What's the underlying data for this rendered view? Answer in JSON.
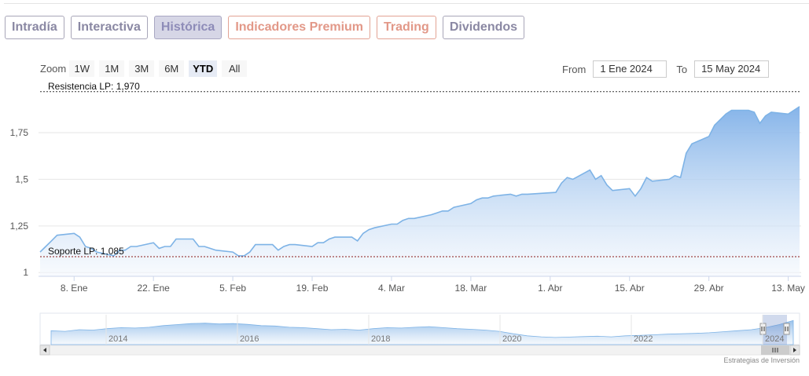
{
  "tabs": [
    {
      "label": "Intradía",
      "style": "normal"
    },
    {
      "label": "Interactiva",
      "style": "normal"
    },
    {
      "label": "Histórica",
      "style": "active"
    },
    {
      "label": "Indicadores Premium",
      "style": "premium"
    },
    {
      "label": "Trading",
      "style": "premium"
    },
    {
      "label": "Dividendos",
      "style": "normal"
    }
  ],
  "zoom": {
    "label": "Zoom",
    "buttons": [
      "1W",
      "1M",
      "3M",
      "6M",
      "YTD",
      "All"
    ],
    "selected": "YTD"
  },
  "range": {
    "from_label": "From",
    "from_value": "1 Ene 2024",
    "to_label": "To",
    "to_value": "15 May 2024"
  },
  "credits": "Estrategias de Inversión",
  "colors": {
    "line": "#7eb3e6",
    "area_top": "#7fb0e8",
    "area_bottom": "#f4f8fd",
    "resistance": "#333333",
    "support": "#8b1a1a",
    "active_tab_bg": "#d6d6e6",
    "premium_tab": "#e29888"
  },
  "chart_data": {
    "type": "area",
    "x_ticks": [
      "8. Ene",
      "22. Ene",
      "5. Feb",
      "19. Feb",
      "4. Mar",
      "18. Mar",
      "1. Abr",
      "15. Abr",
      "29. Abr",
      "13. May"
    ],
    "y_ticks": [
      "1",
      "1,25",
      "1,5",
      "1,75"
    ],
    "ylim": [
      0.98,
      1.99
    ],
    "xlim": [
      "2024-01-02",
      "2024-05-15"
    ],
    "plot_lines": [
      {
        "label": "Resistencia LP: 1,970",
        "value": 1.97,
        "style": "dashed"
      },
      {
        "label": "Soporte LP: 1,085",
        "value": 1.085,
        "style": "dashed"
      }
    ],
    "series": [
      {
        "x": [
          "2024-01-02",
          "2024-01-03",
          "2024-01-04",
          "2024-01-05",
          "2024-01-08",
          "2024-01-09",
          "2024-01-10",
          "2024-01-11",
          "2024-01-12",
          "2024-01-15",
          "2024-01-16",
          "2024-01-17",
          "2024-01-18",
          "2024-01-19",
          "2024-01-22",
          "2024-01-23",
          "2024-01-24",
          "2024-01-25",
          "2024-01-26",
          "2024-01-29",
          "2024-01-30",
          "2024-01-31",
          "2024-02-01",
          "2024-02-02",
          "2024-02-05",
          "2024-02-06",
          "2024-02-07",
          "2024-02-08",
          "2024-02-09",
          "2024-02-12",
          "2024-02-13",
          "2024-02-14",
          "2024-02-15",
          "2024-02-16",
          "2024-02-19",
          "2024-02-20",
          "2024-02-21",
          "2024-02-22",
          "2024-02-23",
          "2024-02-26",
          "2024-02-27",
          "2024-02-28",
          "2024-02-29",
          "2024-03-01",
          "2024-03-04",
          "2024-03-05",
          "2024-03-06",
          "2024-03-07",
          "2024-03-08",
          "2024-03-11",
          "2024-03-12",
          "2024-03-13",
          "2024-03-14",
          "2024-03-15",
          "2024-03-18",
          "2024-03-19",
          "2024-03-20",
          "2024-03-21",
          "2024-03-22",
          "2024-03-25",
          "2024-03-26",
          "2024-03-27",
          "2024-03-28",
          "2024-04-02",
          "2024-04-03",
          "2024-04-04",
          "2024-04-05",
          "2024-04-08",
          "2024-04-09",
          "2024-04-10",
          "2024-04-11",
          "2024-04-12",
          "2024-04-15",
          "2024-04-16",
          "2024-04-17",
          "2024-04-18",
          "2024-04-19",
          "2024-04-22",
          "2024-04-23",
          "2024-04-24",
          "2024-04-25",
          "2024-04-26",
          "2024-04-29",
          "2024-04-30",
          "2024-05-02",
          "2024-05-03",
          "2024-05-06",
          "2024-05-07",
          "2024-05-08",
          "2024-05-09",
          "2024-05-10",
          "2024-05-13",
          "2024-05-14",
          "2024-05-15"
        ],
        "y": [
          1.11,
          1.14,
          1.17,
          1.2,
          1.21,
          1.19,
          1.14,
          1.13,
          1.11,
          1.09,
          1.12,
          1.12,
          1.14,
          1.14,
          1.16,
          1.13,
          1.14,
          1.14,
          1.18,
          1.18,
          1.14,
          1.14,
          1.13,
          1.12,
          1.11,
          1.09,
          1.09,
          1.11,
          1.15,
          1.15,
          1.12,
          1.14,
          1.15,
          1.15,
          1.14,
          1.16,
          1.16,
          1.18,
          1.19,
          1.19,
          1.17,
          1.21,
          1.23,
          1.24,
          1.26,
          1.26,
          1.28,
          1.29,
          1.29,
          1.31,
          1.32,
          1.33,
          1.33,
          1.35,
          1.37,
          1.39,
          1.4,
          1.4,
          1.41,
          1.42,
          1.41,
          1.42,
          1.42,
          1.43,
          1.48,
          1.51,
          1.5,
          1.55,
          1.5,
          1.52,
          1.47,
          1.44,
          1.45,
          1.41,
          1.45,
          1.51,
          1.49,
          1.5,
          1.52,
          1.51,
          1.64,
          1.69,
          1.73,
          1.79,
          1.85,
          1.87,
          1.87,
          1.86,
          1.8,
          1.84,
          1.86,
          1.85,
          1.87,
          1.89
        ]
      }
    ],
    "navigator": {
      "x_ticks": [
        "2014",
        "2016",
        "2018",
        "2020",
        "2022",
        "2024"
      ]
    }
  }
}
